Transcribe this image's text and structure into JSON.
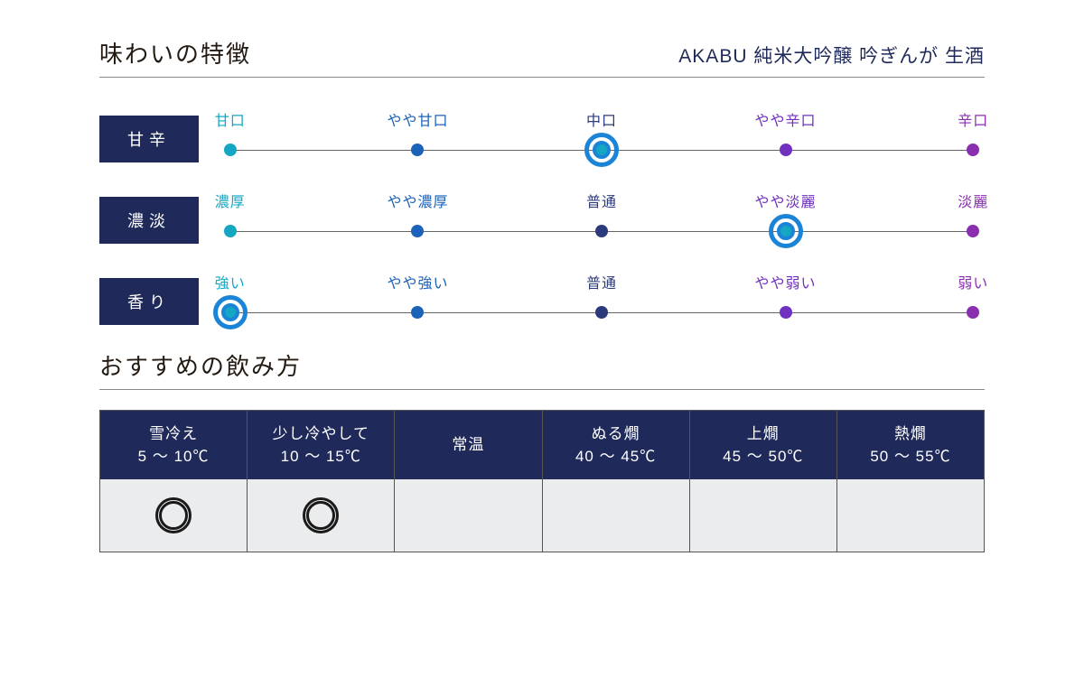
{
  "header": {
    "title": "味わいの特徴",
    "subtitle": "AKABU 純米大吟醸 吟ぎんが 生酒"
  },
  "scale_colors": {
    "stop0": "#13a7c4",
    "stop1": "#1b62b8",
    "stop2": "#2b3a7a",
    "stop3": "#7030c0",
    "stop4": "#8a2fb0",
    "ring": "#1b84d6",
    "line": "#666666"
  },
  "scales": [
    {
      "label": "甘辛",
      "stops": [
        "甘口",
        "やや甘口",
        "中口",
        "やや辛口",
        "辛口"
      ],
      "selected_index": 2
    },
    {
      "label": "濃淡",
      "stops": [
        "濃厚",
        "やや濃厚",
        "普通",
        "やや淡麗",
        "淡麗"
      ],
      "selected_index": 3
    },
    {
      "label": "香り",
      "stops": [
        "強い",
        "やや強い",
        "普通",
        "やや弱い",
        "弱い"
      ],
      "selected_index": 0
    }
  ],
  "section2_title": "おすすめの飲み方",
  "temperature_columns": [
    {
      "name": "雪冷え",
      "range": "5 ～ 10℃",
      "recommended": true
    },
    {
      "name": "少し冷やして",
      "range": "10 ～ 15℃",
      "recommended": true
    },
    {
      "name": "常温",
      "range": "",
      "recommended": false
    },
    {
      "name": "ぬる燗",
      "range": "40 ～ 45℃",
      "recommended": false
    },
    {
      "name": "上燗",
      "range": "45 ～ 50℃",
      "recommended": false
    },
    {
      "name": "熱燗",
      "range": "50 ～ 55℃",
      "recommended": false
    }
  ],
  "style": {
    "navy": "#1f2a5a",
    "body_bg": "#ebeced",
    "stop_positions_pct": [
      1.5,
      26,
      50,
      74,
      98.5
    ]
  }
}
